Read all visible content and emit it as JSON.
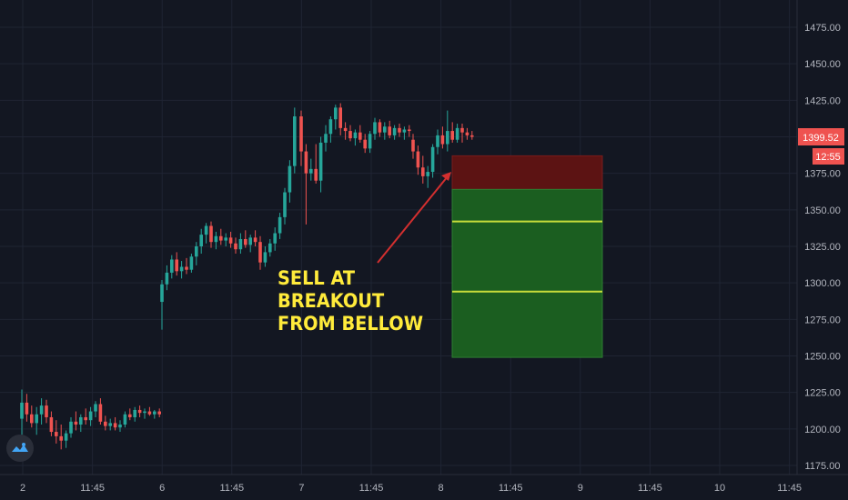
{
  "chart_data": {
    "type": "candlestick",
    "title": "",
    "xlabel": "",
    "ylabel": "",
    "ylim": [
      1170,
      1490
    ],
    "y_ticks": [
      1175,
      1200,
      1225,
      1250,
      1275,
      1300,
      1325,
      1350,
      1375,
      1400,
      1425,
      1450,
      1475
    ],
    "y_tick_labels": [
      "1175.00",
      "1200.00",
      "1225.00",
      "1250.00",
      "1275.00",
      "1300.00",
      "1325.00",
      "1350.00",
      "1375.00",
      "1400.00",
      "1425.00",
      "1450.00",
      "1475.00"
    ],
    "x_tick_labels": [
      "2",
      "11:45",
      "6",
      "11:45",
      "7",
      "11:45",
      "8",
      "11:45",
      "9",
      "11:45",
      "10",
      "11:45"
    ],
    "current_price": "1399.52",
    "countdown": "12:55",
    "colors": {
      "up": "#26a69a",
      "down": "#ef5350",
      "background": "#131722",
      "annotation": "#ffeb3b",
      "stop_zone": "#5c1313",
      "target_zone": "#1b5e20",
      "target_line": "#c6dc3a",
      "arrow": "#d32f2f"
    },
    "annotation": [
      "SELL AT",
      "BREAKOUT",
      "FROM BELLOW"
    ],
    "position": {
      "type": "short",
      "stop_top": 1387,
      "entry": 1364,
      "target_1": 1342,
      "target_2": 1294,
      "bottom": 1249
    },
    "sessions": [
      {
        "label": "2",
        "candles": [
          [
            1207,
            1227,
            1196,
            1218
          ],
          [
            1218,
            1224,
            1205,
            1210
          ],
          [
            1210,
            1216,
            1201,
            1204
          ],
          [
            1204,
            1215,
            1196,
            1210
          ],
          [
            1210,
            1221,
            1203,
            1216
          ],
          [
            1216,
            1220,
            1204,
            1208
          ],
          [
            1208,
            1212,
            1195,
            1198
          ],
          [
            1198,
            1206,
            1190,
            1195
          ],
          [
            1195,
            1203,
            1186,
            1192
          ],
          [
            1192,
            1199,
            1187,
            1197
          ],
          [
            1197,
            1208,
            1194,
            1205
          ],
          [
            1205,
            1212,
            1199,
            1203
          ],
          [
            1203,
            1210,
            1198,
            1208
          ],
          [
            1208,
            1214,
            1203,
            1206
          ],
          [
            1206,
            1215,
            1202,
            1212
          ],
          [
            1212,
            1219,
            1208,
            1217
          ],
          [
            1217,
            1221,
            1203,
            1205
          ],
          [
            1205,
            1209,
            1199,
            1202
          ],
          [
            1202,
            1207,
            1199,
            1204
          ],
          [
            1204,
            1208,
            1199,
            1201
          ],
          [
            1201,
            1206,
            1198,
            1203
          ],
          [
            1203,
            1212,
            1201,
            1210
          ],
          [
            1210,
            1214,
            1206,
            1208
          ],
          [
            1208,
            1215,
            1205,
            1213
          ],
          [
            1213,
            1216,
            1208,
            1211
          ],
          [
            1211,
            1214,
            1207,
            1212
          ],
          [
            1212,
            1215,
            1209,
            1210
          ],
          [
            1210,
            1213,
            1207,
            1212
          ],
          [
            1212,
            1214,
            1208,
            1210
          ]
        ]
      },
      {
        "label": "6",
        "candles": [
          [
            1287,
            1302,
            1268,
            1299
          ],
          [
            1299,
            1312,
            1295,
            1307
          ],
          [
            1307,
            1319,
            1303,
            1316
          ],
          [
            1316,
            1321,
            1305,
            1308
          ],
          [
            1308,
            1315,
            1303,
            1311
          ],
          [
            1311,
            1317,
            1306,
            1309
          ],
          [
            1309,
            1320,
            1307,
            1318
          ],
          [
            1318,
            1328,
            1312,
            1325
          ],
          [
            1325,
            1337,
            1320,
            1333
          ],
          [
            1333,
            1341,
            1327,
            1339
          ],
          [
            1339,
            1342,
            1324,
            1328
          ],
          [
            1328,
            1335,
            1323,
            1332
          ],
          [
            1332,
            1337,
            1326,
            1329
          ],
          [
            1329,
            1334,
            1325,
            1331
          ],
          [
            1331,
            1335,
            1324,
            1327
          ],
          [
            1327,
            1331,
            1320,
            1323
          ],
          [
            1323,
            1334,
            1320,
            1330
          ],
          [
            1330,
            1336,
            1324,
            1326
          ],
          [
            1326,
            1333,
            1321,
            1331
          ],
          [
            1331,
            1336,
            1325,
            1328
          ],
          [
            1328,
            1332,
            1309,
            1314
          ],
          [
            1314,
            1325,
            1311,
            1321
          ],
          [
            1321,
            1330,
            1318,
            1327
          ],
          [
            1327,
            1338,
            1322,
            1334
          ],
          [
            1334,
            1348,
            1330,
            1345
          ],
          [
            1345,
            1365,
            1340,
            1362
          ],
          [
            1362,
            1384,
            1355,
            1380
          ],
          [
            1380,
            1420,
            1375,
            1414
          ]
        ]
      },
      {
        "label": "7",
        "candles": [
          [
            1414,
            1418,
            1380,
            1390
          ],
          [
            1390,
            1395,
            1340,
            1375
          ],
          [
            1375,
            1385,
            1370,
            1378
          ],
          [
            1378,
            1395,
            1368,
            1370
          ],
          [
            1370,
            1400,
            1362,
            1396
          ],
          [
            1396,
            1408,
            1390,
            1402
          ],
          [
            1402,
            1414,
            1396,
            1412
          ],
          [
            1412,
            1422,
            1405,
            1420
          ],
          [
            1420,
            1423,
            1401,
            1406
          ],
          [
            1406,
            1410,
            1398,
            1404
          ],
          [
            1404,
            1408,
            1397,
            1399
          ],
          [
            1399,
            1405,
            1394,
            1403
          ],
          [
            1403,
            1408,
            1396,
            1398
          ],
          [
            1398,
            1402,
            1389,
            1392
          ],
          [
            1392,
            1404,
            1389,
            1402
          ],
          [
            1402,
            1413,
            1398,
            1410
          ],
          [
            1410,
            1412,
            1400,
            1403
          ],
          [
            1403,
            1410,
            1398,
            1407
          ],
          [
            1407,
            1411,
            1399,
            1401
          ],
          [
            1401,
            1408,
            1398,
            1406
          ],
          [
            1406,
            1409,
            1400,
            1403
          ],
          [
            1403,
            1407,
            1398,
            1405
          ],
          [
            1405,
            1408,
            1400,
            1404
          ]
        ]
      },
      {
        "label": "8",
        "candles": [
          [
            1398,
            1402,
            1385,
            1390
          ],
          [
            1390,
            1394,
            1374,
            1379
          ],
          [
            1379,
            1387,
            1368,
            1373
          ],
          [
            1373,
            1380,
            1365,
            1376
          ],
          [
            1376,
            1395,
            1372,
            1393
          ],
          [
            1393,
            1405,
            1388,
            1401
          ],
          [
            1401,
            1407,
            1392,
            1395
          ],
          [
            1395,
            1418,
            1390,
            1404
          ],
          [
            1404,
            1410,
            1396,
            1398
          ],
          [
            1398,
            1409,
            1396,
            1406
          ],
          [
            1406,
            1409,
            1396,
            1403
          ],
          [
            1403,
            1406,
            1398,
            1401
          ],
          [
            1401,
            1404,
            1398,
            1400
          ]
        ]
      }
    ]
  }
}
